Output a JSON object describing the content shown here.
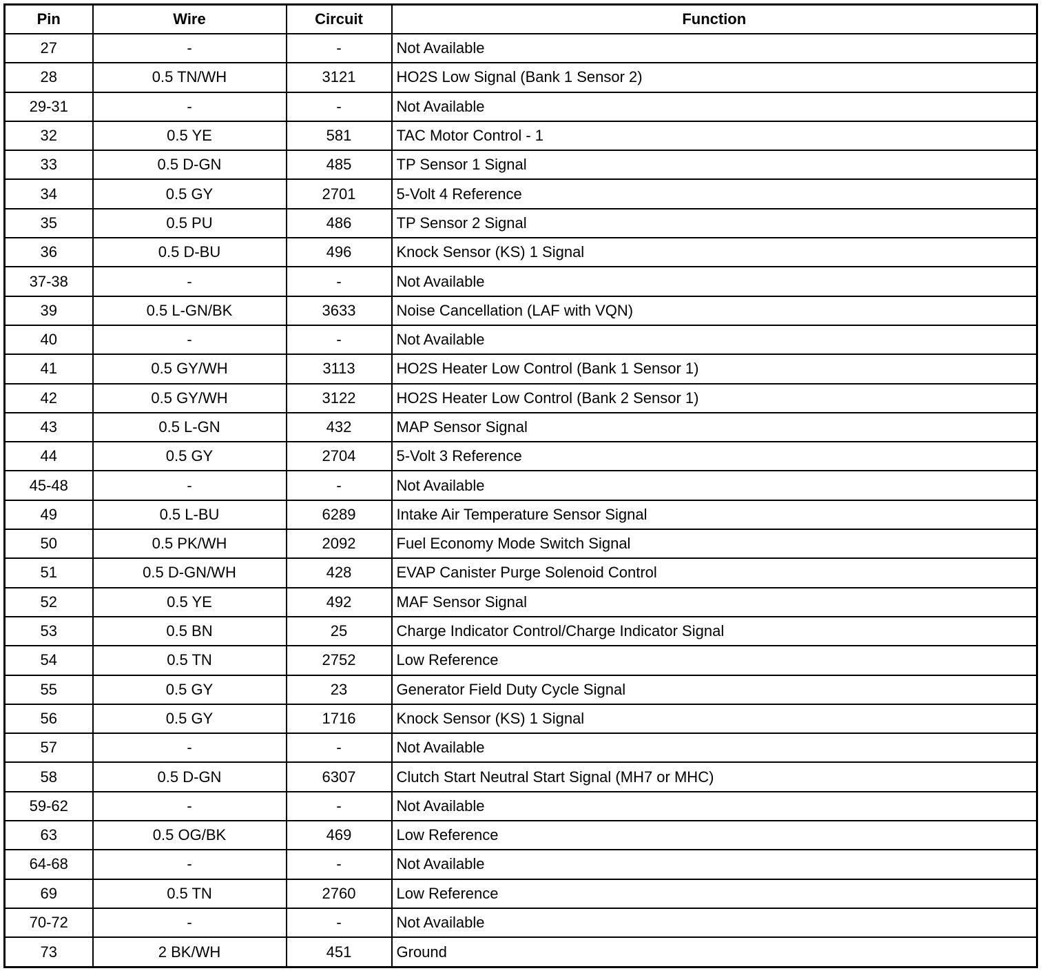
{
  "headers": [
    "Pin",
    "Wire",
    "Circuit",
    "Function"
  ],
  "rows": [
    [
      "27",
      "-",
      "-",
      "Not Available"
    ],
    [
      "28",
      "0.5 TN/WH",
      "3121",
      "HO2S Low Signal (Bank 1 Sensor 2)"
    ],
    [
      "29-31",
      "-",
      "-",
      "Not Available"
    ],
    [
      "32",
      "0.5 YE",
      "581",
      "TAC Motor Control - 1"
    ],
    [
      "33",
      "0.5 D-GN",
      "485",
      "TP Sensor 1 Signal"
    ],
    [
      "34",
      "0.5 GY",
      "2701",
      "5-Volt 4 Reference"
    ],
    [
      "35",
      "0.5 PU",
      "486",
      "TP Sensor 2 Signal"
    ],
    [
      "36",
      "0.5 D-BU",
      "496",
      "Knock Sensor (KS) 1 Signal"
    ],
    [
      "37-38",
      "-",
      "-",
      "Not Available"
    ],
    [
      "39",
      "0.5 L-GN/BK",
      "3633",
      "Noise Cancellation (LAF with VQN)"
    ],
    [
      "40",
      "-",
      "-",
      "Not Available"
    ],
    [
      "41",
      "0.5 GY/WH",
      "3113",
      "HO2S Heater Low Control (Bank 1 Sensor 1)"
    ],
    [
      "42",
      "0.5 GY/WH",
      "3122",
      "HO2S Heater Low Control (Bank 2 Sensor 1)"
    ],
    [
      "43",
      "0.5 L-GN",
      "432",
      "MAP Sensor Signal"
    ],
    [
      "44",
      "0.5 GY",
      "2704",
      "5-Volt 3 Reference"
    ],
    [
      "45-48",
      "-",
      "-",
      "Not Available"
    ],
    [
      "49",
      "0.5 L-BU",
      "6289",
      "Intake Air Temperature Sensor Signal"
    ],
    [
      "50",
      "0.5 PK/WH",
      "2092",
      "Fuel Economy Mode Switch Signal"
    ],
    [
      "51",
      "0.5 D-GN/WH",
      "428",
      "EVAP Canister Purge Solenoid Control"
    ],
    [
      "52",
      "0.5 YE",
      "492",
      "MAF Sensor Signal"
    ],
    [
      "53",
      "0.5 BN",
      "25",
      "Charge Indicator Control/Charge Indicator Signal"
    ],
    [
      "54",
      "0.5 TN",
      "2752",
      "Low Reference"
    ],
    [
      "55",
      "0.5 GY",
      "23",
      "Generator Field Duty Cycle Signal"
    ],
    [
      "56",
      "0.5 GY",
      "1716",
      "Knock Sensor (KS) 1 Signal"
    ],
    [
      "57",
      "-",
      "-",
      "Not Available"
    ],
    [
      "58",
      "0.5 D-GN",
      "6307",
      "Clutch Start Neutral Start Signal (MH7 or MHC)"
    ],
    [
      "59-62",
      "-",
      "-",
      "Not Available"
    ],
    [
      "63",
      "0.5 OG/BK",
      "469",
      "Low Reference"
    ],
    [
      "64-68",
      "-",
      "-",
      "Not Available"
    ],
    [
      "69",
      "0.5 TN",
      "2760",
      "Low Reference"
    ],
    [
      "70-72",
      "-",
      "-",
      "Not Available"
    ],
    [
      "73",
      "2 BK/WH",
      "451",
      "Ground"
    ]
  ]
}
